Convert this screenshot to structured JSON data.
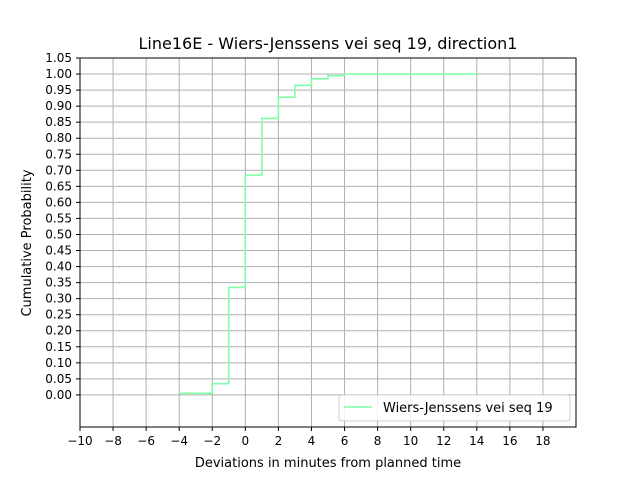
{
  "chart_data": {
    "type": "line",
    "step": true,
    "title": "Line16E - Wiers-Jenssens vei seq 19, direction1",
    "xlabel": "Deviations in minutes from planned time",
    "ylabel": "Cumulative Probability",
    "xlim": [
      -10,
      20
    ],
    "ylim": [
      -0.1,
      1.05
    ],
    "xticks": [
      -10,
      -8,
      -6,
      -4,
      -2,
      0,
      2,
      4,
      6,
      8,
      10,
      12,
      14,
      16,
      18
    ],
    "xtick_labels": [
      "−10",
      "−8",
      "−6",
      "−4",
      "−2",
      "0",
      "2",
      "4",
      "6",
      "8",
      "10",
      "12",
      "14",
      "16",
      "18"
    ],
    "yticks": [
      0.0,
      0.05,
      0.1,
      0.15,
      0.2,
      0.25,
      0.3,
      0.35,
      0.4,
      0.45,
      0.5,
      0.55,
      0.6,
      0.65,
      0.7,
      0.75,
      0.8,
      0.85,
      0.9,
      0.95,
      1.0,
      1.05
    ],
    "ytick_labels": [
      "0.00",
      "0.05",
      "0.10",
      "0.15",
      "0.20",
      "0.25",
      "0.30",
      "0.35",
      "0.40",
      "0.45",
      "0.50",
      "0.55",
      "0.60",
      "0.65",
      "0.70",
      "0.75",
      "0.80",
      "0.85",
      "0.90",
      "0.95",
      "1.00",
      "1.05"
    ],
    "grid": true,
    "legend_position": "lower-right",
    "series": [
      {
        "name": "Wiers-Jenssens vei seq 19",
        "color": "#7fffa5",
        "x": [
          -4,
          -2,
          -1,
          0,
          1,
          2,
          3,
          4,
          5,
          6,
          14
        ],
        "y": [
          0.005,
          0.035,
          0.335,
          0.685,
          0.862,
          0.928,
          0.965,
          0.985,
          0.995,
          1.0,
          1.0
        ]
      }
    ]
  }
}
